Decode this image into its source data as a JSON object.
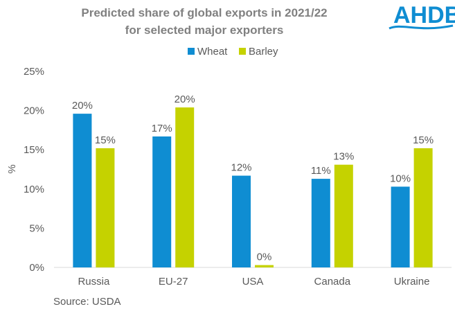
{
  "chart_data": {
    "type": "bar",
    "title_lines": [
      "Predicted share of global exports in 2021/22",
      "for selected major exporters"
    ],
    "categories": [
      "Russia",
      "EU-27",
      "USA",
      "Canada",
      "Ukraine"
    ],
    "series": [
      {
        "name": "Wheat",
        "color": "#0F8DD2",
        "values": [
          19.6,
          16.7,
          11.7,
          11.3,
          10.3
        ],
        "labels": [
          "20%",
          "17%",
          "12%",
          "11%",
          "10%"
        ]
      },
      {
        "name": "Barley",
        "color": "#C5D200",
        "values": [
          15.2,
          20.4,
          0.3,
          13.1,
          15.2
        ],
        "labels": [
          "15%",
          "20%",
          "0%",
          "13%",
          "15%"
        ]
      }
    ],
    "ylabel": "%",
    "ylim": [
      0,
      25
    ],
    "yticks": [
      0,
      5,
      10,
      15,
      20,
      25
    ],
    "ytick_labels": [
      "0%",
      "5%",
      "10%",
      "15%",
      "20%",
      "25%"
    ],
    "grid": false,
    "legend": "top-center",
    "source": "Source: USDA"
  },
  "logo": {
    "text": "AHDB",
    "color": "#0F8DD2"
  }
}
